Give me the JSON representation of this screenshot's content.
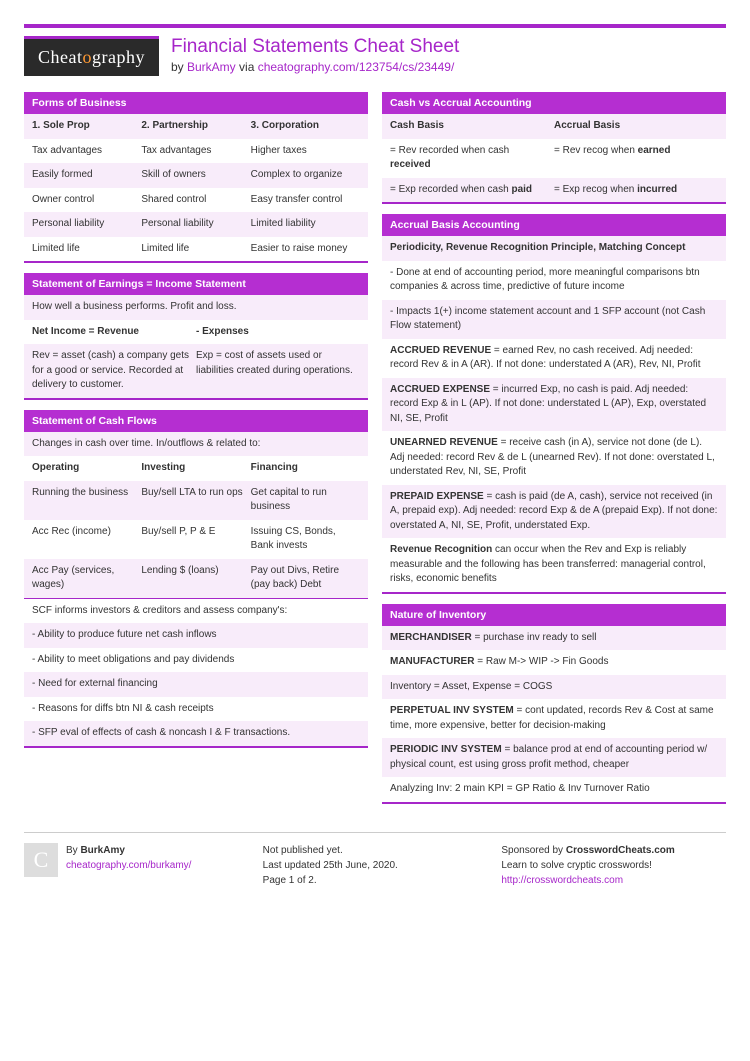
{
  "colors": {
    "accent": "#a626c9",
    "header_bg": "#b52ed1",
    "alt_bg": "#f8ecfa"
  },
  "logo": {
    "part1": "Cheat",
    "part2": "o",
    "part3": "graphy"
  },
  "title": "Financial Statements Cheat Sheet",
  "byline": {
    "by_text": "by ",
    "author": "BurkAmy",
    "via_text": " via ",
    "url": "cheatography.com/123754/cs/23449/"
  },
  "left": {
    "forms": {
      "header": "Forms of Business",
      "cols": [
        "1. Sole Prop",
        "2. Partnership",
        "3. Corporation"
      ],
      "rows": [
        [
          "Tax advantages",
          "Tax advantages",
          "Higher taxes"
        ],
        [
          "Easily formed",
          "Skill of owners",
          "Complex to organize"
        ],
        [
          "Owner control",
          "Shared control",
          "Easy transfer control"
        ],
        [
          "Personal liability",
          "Personal liability",
          "Limited liability"
        ],
        [
          "Limited life",
          "Limited life",
          "Easier to raise money"
        ]
      ]
    },
    "earnings": {
      "header": "Statement of Earnings = Income Statement",
      "intro": "How well a business performs. Profit and loss.",
      "cols": [
        "Net Income = Revenue",
        "- Expenses"
      ],
      "rows": [
        [
          "Rev = asset (cash) a company gets for a good or service. Recorded at delivery to customer.",
          "Exp = cost of assets used or liabilities created during operations."
        ]
      ]
    },
    "cashflows": {
      "header": "Statement of Cash Flows",
      "intro": "Changes in cash over time. In/outflows & related to:",
      "cols": [
        "Operating",
        "Investing",
        "Financing"
      ],
      "rows": [
        [
          "Running the business",
          "Buy/sell LTA to run ops",
          "Get capital to run business"
        ],
        [
          "Acc Rec (income)",
          "Buy/sell P, P & E",
          "Issuing CS, Bonds, Bank invests"
        ],
        [
          "Acc Pay (services, wages)",
          "Lending $ (loans)",
          "Pay out Divs, Retire (pay back) Debt"
        ]
      ],
      "notes": [
        "SCF informs investors & creditors and assess company's:",
        "- Ability to produce future net cash inflows",
        "- Ability to meet obligations and pay dividends",
        "- Need for external financing",
        "- Reasons for diffs btn NI & cash receipts",
        "- SFP eval of effects of cash & noncash I & F transactions."
      ]
    }
  },
  "right": {
    "cashvsaccrual": {
      "header": "Cash vs Accrual Accounting",
      "cols": [
        "Cash Basis",
        "Accrual Basis"
      ],
      "rows_html": [
        [
          "= Rev recorded when cash <b>received</b>",
          "= Rev recog when <b>earned</b>"
        ],
        [
          "= Exp recorded when cash <b>paid</b>",
          "= Exp recog when <b>incurred</b>"
        ]
      ]
    },
    "accrual": {
      "header": "Accrual Basis Accounting",
      "head_row": "Periodicity, Revenue Recognition Principle, Matching Concept",
      "rows_html": [
        "- Done at end of accounting period, more meaningful comparisons btn companies & across time, predictive of future income",
        "- Impacts 1(+) income statement account and 1 SFP account (not Cash Flow statement)",
        "<b>ACCRUED REVENUE</b> = earned Rev, no cash received. Adj needed: record Rev & in A (AR). If not done: understated A (AR), Rev, NI, Profit",
        "<b>ACCRUED EXPENSE</b> = incurred Exp, no cash is paid. Adj needed: record Exp & in L (AP). If not done: understated L (AP), Exp, overstated NI, SE, Profit",
        "<b>UNEARNED REVENUE</b> = receive cash (in A), service not done (de L). Adj needed: record Rev & de L (unearned Rev). If not done: overstated L, understated Rev, NI, SE, Profit",
        "<b>PREPAID EXPENSE</b> = cash is paid (de A, cash), service not received (in A, prepaid exp). Adj needed: record Exp & de A (prepaid Exp). If not done: overstated A, NI, SE, Profit, understated Exp.",
        "<b>Revenue Recognition</b> can occur when the Rev and Exp is reliably measurable and the following has been transferred: managerial control, risks, economic benefits"
      ]
    },
    "inventory": {
      "header": "Nature of Inventory",
      "rows_html": [
        "<b>MERCHANDISER</b> = purchase inv ready to sell",
        "<b>MANUFACTURER</b> = Raw M-> WIP -> Fin Goods",
        "Inventory = Asset, Expense = COGS",
        "<b>PERPETUAL INV SYSTEM</b> = cont updated, records Rev & Cost at same time, more expensive, better for decision-making",
        "<b>PERIODIC INV SYSTEM</b> = balance prod at end of accounting period w/ physical count, est using gross profit method, cheaper",
        "Analyzing Inv: 2 main KPI = GP Ratio & Inv Turnover Ratio"
      ]
    }
  },
  "footer": {
    "by_label": "By ",
    "author": "BurkAmy",
    "author_url": "cheatography.com/burkamy/",
    "pub1": "Not published yet.",
    "pub2": "Last updated 25th June, 2020.",
    "pub3": "Page 1 of 2.",
    "sponsor1_pre": "Sponsored by ",
    "sponsor1_bold": "CrosswordCheats.com",
    "sponsor2": "Learn to solve cryptic crosswords!",
    "sponsor3": "http://crosswordcheats.com"
  }
}
